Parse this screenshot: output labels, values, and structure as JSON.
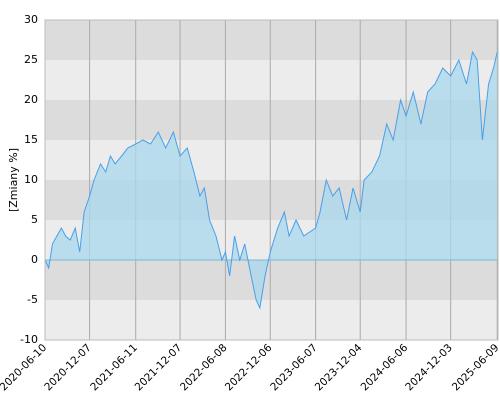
{
  "chart_data": {
    "type": "area",
    "y_label": "[Zmiany %]",
    "x": [
      "2020-06-10",
      "2020-06-25",
      "2020-07-10",
      "2020-07-28",
      "2020-08-15",
      "2020-09-01",
      "2020-09-20",
      "2020-10-10",
      "2020-10-28",
      "2020-11-15",
      "2020-12-07",
      "2020-12-25",
      "2021-01-20",
      "2021-02-10",
      "2021-03-01",
      "2021-03-20",
      "2021-04-15",
      "2021-05-10",
      "2021-06-11",
      "2021-07-10",
      "2021-08-10",
      "2021-09-10",
      "2021-10-10",
      "2021-11-10",
      "2021-12-07",
      "2022-01-05",
      "2022-02-01",
      "2022-02-25",
      "2022-03-15",
      "2022-04-05",
      "2022-05-01",
      "2022-05-25",
      "2022-06-08",
      "2022-06-25",
      "2022-07-15",
      "2022-08-05",
      "2022-08-25",
      "2022-09-20",
      "2022-10-10",
      "2022-10-25",
      "2022-11-15",
      "2022-12-06",
      "2023-01-05",
      "2023-02-01",
      "2023-02-20",
      "2023-03-20",
      "2023-04-20",
      "2023-06-07",
      "2023-06-25",
      "2023-07-20",
      "2023-08-15",
      "2023-09-10",
      "2023-10-10",
      "2023-11-05",
      "2023-12-04",
      "2023-12-20",
      "2024-01-20",
      "2024-02-20",
      "2024-03-20",
      "2024-04-15",
      "2024-05-15",
      "2024-06-06",
      "2024-07-05",
      "2024-08-05",
      "2024-09-01",
      "2024-10-01",
      "2024-11-01",
      "2024-12-03",
      "2025-01-05",
      "2025-02-05",
      "2025-03-01",
      "2025-03-20",
      "2025-04-10",
      "2025-05-05",
      "2025-05-25",
      "2025-06-09"
    ],
    "values": [
      0,
      -1,
      2,
      3,
      4,
      3,
      2.5,
      4,
      1,
      6,
      8,
      10,
      12,
      11,
      13,
      12,
      13,
      14,
      14.5,
      15,
      14.5,
      16,
      14,
      16,
      13,
      14,
      11,
      8,
      9,
      5,
      3,
      0,
      1,
      -2,
      3,
      0,
      2,
      -2,
      -5,
      -6,
      -2,
      1,
      4,
      6,
      3,
      5,
      3,
      4,
      6,
      10,
      8,
      9,
      5,
      9,
      6,
      10,
      11,
      13,
      17,
      15,
      20,
      18,
      21,
      17,
      21,
      22,
      24,
      23,
      25,
      22,
      26,
      25,
      15,
      22,
      24,
      26
    ],
    "color": "#4a9fe8",
    "fill": "#a8d8ee",
    "xlim": [
      "2020-06-10",
      "2025-06-12"
    ],
    "xticks": [
      "2020-06-10",
      "2020-12-07",
      "2021-06-11",
      "2021-12-07",
      "2022-06-08",
      "2022-12-06",
      "2023-06-07",
      "2023-12-04",
      "2024-06-06",
      "2024-12-03",
      "2025-06-09"
    ],
    "ylim": [
      -10,
      30
    ],
    "yticks": [
      -10,
      -5,
      0,
      5,
      10,
      15,
      20,
      25,
      30
    ],
    "grid": true
  }
}
